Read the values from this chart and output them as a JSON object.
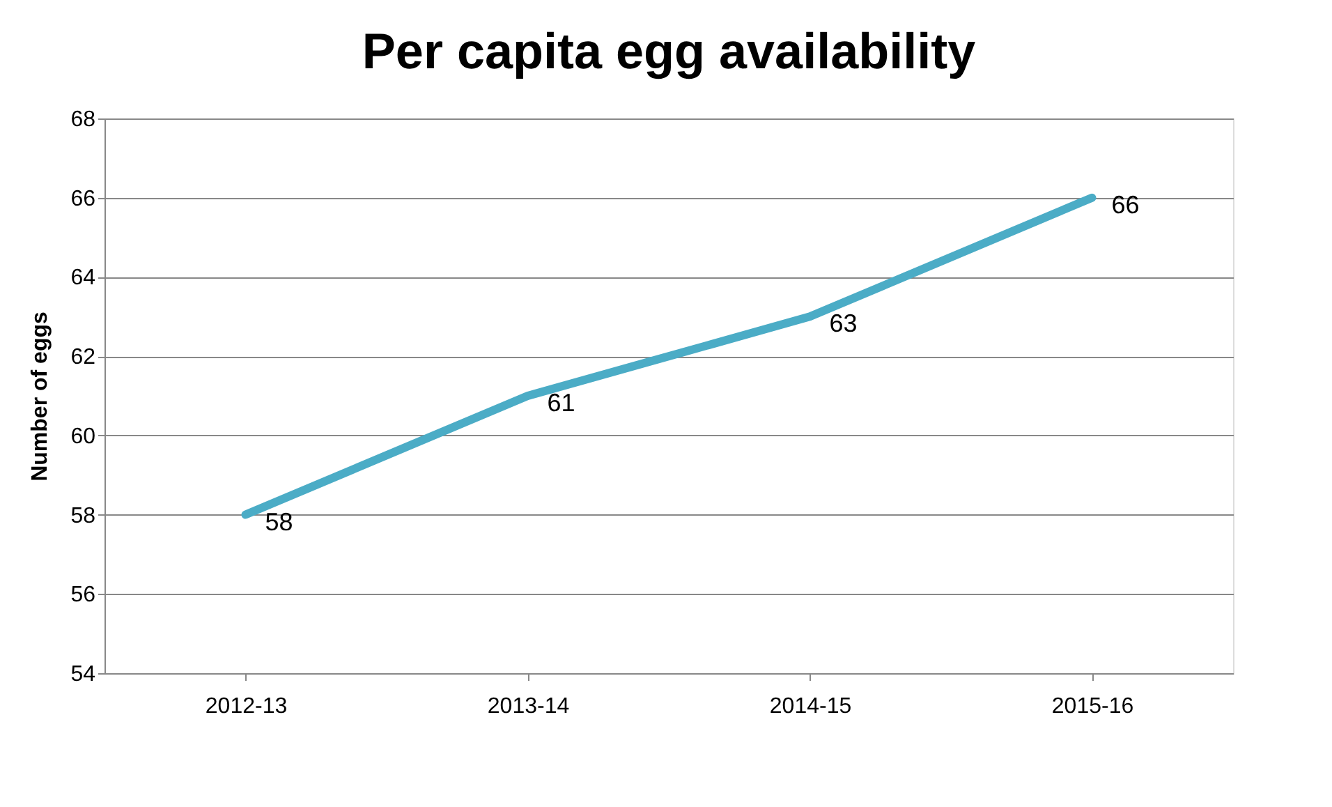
{
  "chart_data": {
    "type": "line",
    "title": "Per capita egg availability",
    "ylabel": "Number of eggs",
    "categories": [
      "2012-13",
      "2013-14",
      "2014-15",
      "2015-16"
    ],
    "series": [
      {
        "color": "#4bacc6",
        "values": [
          58,
          61,
          63,
          66
        ]
      }
    ],
    "ylim": [
      54,
      68
    ],
    "yticks": [
      54,
      56,
      58,
      60,
      62,
      64,
      66,
      68
    ],
    "grid": "y",
    "legend": false,
    "marker": "none",
    "line_style": "solid",
    "data_labels": true
  }
}
